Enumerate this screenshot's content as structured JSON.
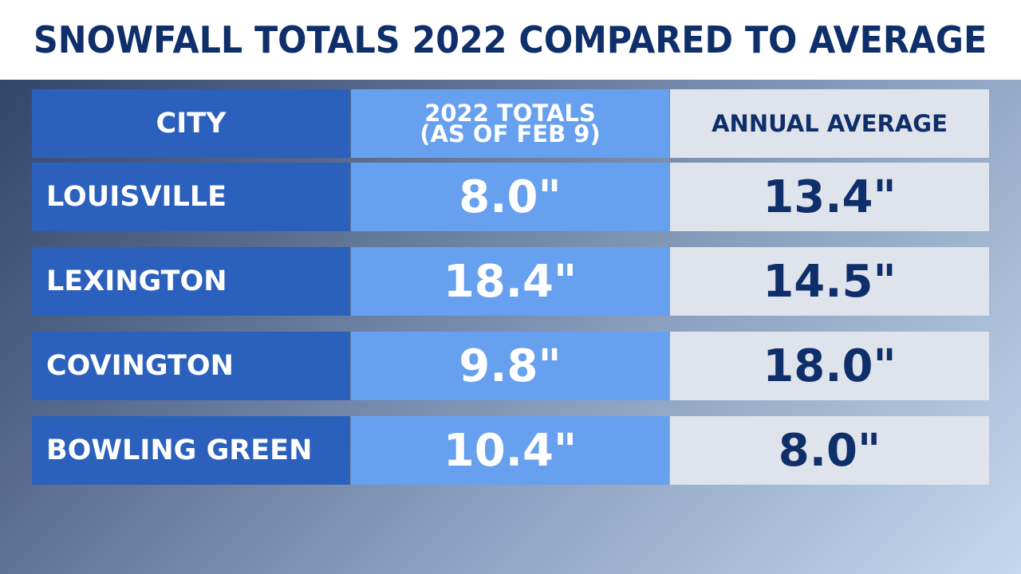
{
  "title": "SNOWFALL TOTALS 2022 COMPARED TO AVERAGE",
  "header": {
    "city": "CITY",
    "totals_line1": "2022 TOTALS",
    "totals_line2": "(AS OF FEB 9)",
    "average": "ANNUAL AVERAGE"
  },
  "rows": [
    {
      "city": "LOUISVILLE",
      "total": "8.0\"",
      "average": "13.4\""
    },
    {
      "city": "LEXINGTON",
      "total": "18.4\"",
      "average": "14.5\""
    },
    {
      "city": "COVINGTON",
      "total": "9.8\"",
      "average": "18.0\""
    },
    {
      "city": "BOWLING GREEN",
      "total": "10.4\"",
      "average": "8.0\""
    }
  ],
  "colors": {
    "title_text": "#0f2f6b",
    "city_column": "#2b60bd",
    "totals_column": "#66a0ee",
    "average_column": "#dfe4ec"
  },
  "chart_data": {
    "type": "table",
    "title": "SNOWFALL TOTALS 2022 COMPARED TO AVERAGE",
    "columns": [
      "CITY",
      "2022 TOTALS (AS OF FEB 9)",
      "ANNUAL AVERAGE"
    ],
    "categories": [
      "LOUISVILLE",
      "LEXINGTON",
      "COVINGTON",
      "BOWLING GREEN"
    ],
    "series": [
      {
        "name": "2022 TOTALS (AS OF FEB 9)",
        "values": [
          8.0,
          18.4,
          9.8,
          10.4
        ]
      },
      {
        "name": "ANNUAL AVERAGE",
        "values": [
          13.4,
          14.5,
          18.0,
          8.0
        ]
      }
    ]
  }
}
